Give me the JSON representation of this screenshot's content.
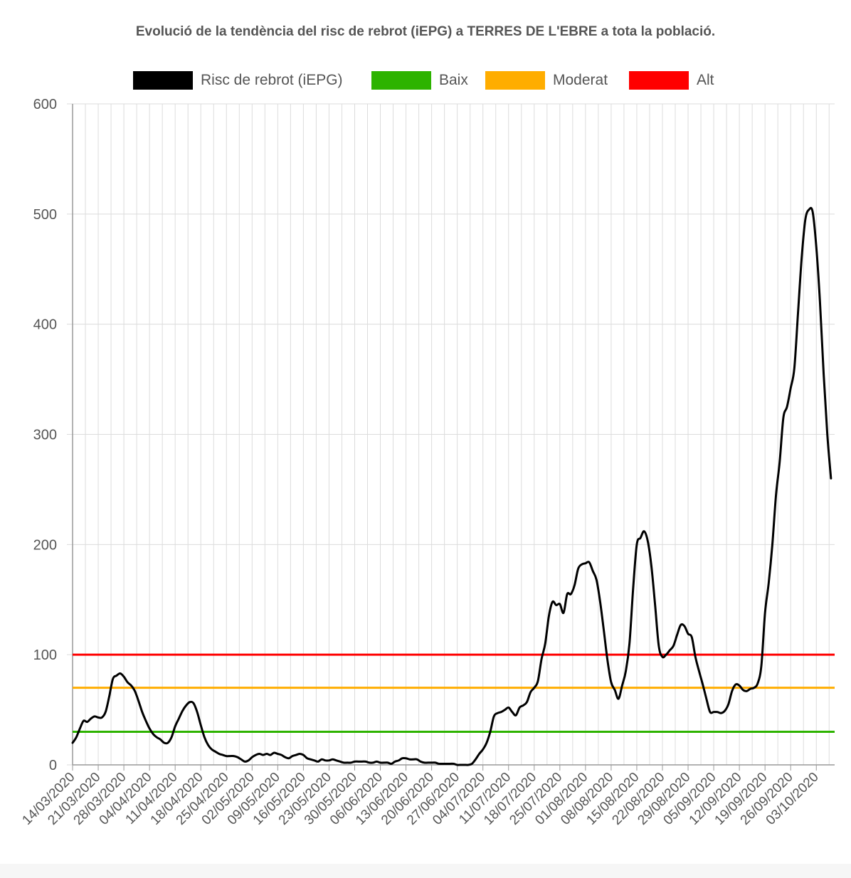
{
  "chart_data": {
    "type": "line",
    "title": "Evolució de la tendència del risc de rebrot (iEPG) a TERRES DE L'EBRE a tota la població.",
    "xlabel": "",
    "ylabel": "",
    "ylim": [
      0,
      600
    ],
    "yticks": [
      "0",
      "100",
      "200",
      "300",
      "400",
      "500",
      "600"
    ],
    "grid": true,
    "legend_position": "top",
    "x_start": "14/03/2020",
    "x_end": "08/10/2020",
    "xticks": [
      "14/03/2020",
      "21/03/2020",
      "28/03/2020",
      "04/04/2020",
      "11/04/2020",
      "18/04/2020",
      "25/04/2020",
      "02/05/2020",
      "09/05/2020",
      "16/05/2020",
      "23/05/2020",
      "30/05/2020",
      "06/06/2020",
      "13/06/2020",
      "20/06/2020",
      "27/06/2020",
      "04/07/2020",
      "11/07/2020",
      "18/07/2020",
      "25/07/2020",
      "01/08/2020",
      "08/08/2020",
      "15/08/2020",
      "22/08/2020",
      "29/08/2020",
      "05/09/2020",
      "12/09/2020",
      "19/09/2020",
      "26/09/2020",
      "03/10/2020"
    ],
    "series": [
      {
        "name": "Risc de rebrot (iEPG)",
        "color": "#000000",
        "points": [
          [
            "14/03/2020",
            20
          ],
          [
            "15/03/2020",
            25
          ],
          [
            "16/03/2020",
            33
          ],
          [
            "17/03/2020",
            40
          ],
          [
            "18/03/2020",
            39
          ],
          [
            "19/03/2020",
            42
          ],
          [
            "20/03/2020",
            44
          ],
          [
            "21/03/2020",
            43
          ],
          [
            "22/03/2020",
            43
          ],
          [
            "23/03/2020",
            48
          ],
          [
            "24/03/2020",
            62
          ],
          [
            "25/03/2020",
            78
          ],
          [
            "26/03/2020",
            81
          ],
          [
            "27/03/2020",
            83
          ],
          [
            "28/03/2020",
            80
          ],
          [
            "29/03/2020",
            75
          ],
          [
            "30/03/2020",
            72
          ],
          [
            "31/03/2020",
            67
          ],
          [
            "01/04/2020",
            58
          ],
          [
            "02/04/2020",
            48
          ],
          [
            "03/04/2020",
            40
          ],
          [
            "04/04/2020",
            33
          ],
          [
            "05/04/2020",
            28
          ],
          [
            "06/04/2020",
            25
          ],
          [
            "07/04/2020",
            23
          ],
          [
            "08/04/2020",
            20
          ],
          [
            "09/04/2020",
            20
          ],
          [
            "10/04/2020",
            25
          ],
          [
            "11/04/2020",
            35
          ],
          [
            "12/04/2020",
            42
          ],
          [
            "13/04/2020",
            49
          ],
          [
            "14/04/2020",
            54
          ],
          [
            "15/04/2020",
            57
          ],
          [
            "16/04/2020",
            56
          ],
          [
            "17/04/2020",
            48
          ],
          [
            "18/04/2020",
            36
          ],
          [
            "19/04/2020",
            25
          ],
          [
            "20/04/2020",
            18
          ],
          [
            "21/04/2020",
            14
          ],
          [
            "22/04/2020",
            12
          ],
          [
            "23/04/2020",
            10
          ],
          [
            "24/04/2020",
            9
          ],
          [
            "25/04/2020",
            8
          ],
          [
            "26/04/2020",
            8
          ],
          [
            "27/04/2020",
            8
          ],
          [
            "28/04/2020",
            7
          ],
          [
            "29/04/2020",
            5
          ],
          [
            "30/04/2020",
            3
          ],
          [
            "01/05/2020",
            4
          ],
          [
            "02/05/2020",
            7
          ],
          [
            "03/05/2020",
            9
          ],
          [
            "04/05/2020",
            10
          ],
          [
            "05/05/2020",
            9
          ],
          [
            "06/05/2020",
            10
          ],
          [
            "07/05/2020",
            9
          ],
          [
            "08/05/2020",
            11
          ],
          [
            "09/05/2020",
            10
          ],
          [
            "10/05/2020",
            9
          ],
          [
            "11/05/2020",
            7
          ],
          [
            "12/05/2020",
            6
          ],
          [
            "13/05/2020",
            8
          ],
          [
            "14/05/2020",
            9
          ],
          [
            "15/05/2020",
            10
          ],
          [
            "16/05/2020",
            9
          ],
          [
            "17/05/2020",
            6
          ],
          [
            "18/05/2020",
            5
          ],
          [
            "19/05/2020",
            4
          ],
          [
            "20/05/2020",
            3
          ],
          [
            "21/05/2020",
            5
          ],
          [
            "22/05/2020",
            4
          ],
          [
            "23/05/2020",
            4
          ],
          [
            "24/05/2020",
            5
          ],
          [
            "25/05/2020",
            4
          ],
          [
            "26/05/2020",
            3
          ],
          [
            "27/05/2020",
            2
          ],
          [
            "28/05/2020",
            2
          ],
          [
            "29/05/2020",
            2
          ],
          [
            "30/05/2020",
            3
          ],
          [
            "31/05/2020",
            3
          ],
          [
            "01/06/2020",
            3
          ],
          [
            "02/06/2020",
            3
          ],
          [
            "03/06/2020",
            2
          ],
          [
            "04/06/2020",
            2
          ],
          [
            "05/06/2020",
            3
          ],
          [
            "06/06/2020",
            2
          ],
          [
            "07/06/2020",
            2
          ],
          [
            "08/06/2020",
            2
          ],
          [
            "09/06/2020",
            1
          ],
          [
            "10/06/2020",
            3
          ],
          [
            "11/06/2020",
            4
          ],
          [
            "12/06/2020",
            6
          ],
          [
            "13/06/2020",
            6
          ],
          [
            "14/06/2020",
            5
          ],
          [
            "15/06/2020",
            5
          ],
          [
            "16/06/2020",
            5
          ],
          [
            "17/06/2020",
            3
          ],
          [
            "18/06/2020",
            2
          ],
          [
            "19/06/2020",
            2
          ],
          [
            "20/06/2020",
            2
          ],
          [
            "21/06/2020",
            2
          ],
          [
            "22/06/2020",
            1
          ],
          [
            "23/06/2020",
            1
          ],
          [
            "24/06/2020",
            1
          ],
          [
            "25/06/2020",
            1
          ],
          [
            "26/06/2020",
            1
          ],
          [
            "27/06/2020",
            0
          ],
          [
            "28/06/2020",
            0
          ],
          [
            "29/06/2020",
            0
          ],
          [
            "30/06/2020",
            0
          ],
          [
            "01/07/2020",
            1
          ],
          [
            "02/07/2020",
            5
          ],
          [
            "03/07/2020",
            10
          ],
          [
            "04/07/2020",
            14
          ],
          [
            "05/07/2020",
            20
          ],
          [
            "06/07/2020",
            30
          ],
          [
            "07/07/2020",
            44
          ],
          [
            "08/07/2020",
            47
          ],
          [
            "09/07/2020",
            48
          ],
          [
            "10/07/2020",
            50
          ],
          [
            "11/07/2020",
            52
          ],
          [
            "12/07/2020",
            48
          ],
          [
            "13/07/2020",
            45
          ],
          [
            "14/07/2020",
            52
          ],
          [
            "15/07/2020",
            54
          ],
          [
            "16/07/2020",
            57
          ],
          [
            "17/07/2020",
            66
          ],
          [
            "18/07/2020",
            70
          ],
          [
            "19/07/2020",
            76
          ],
          [
            "20/07/2020",
            96
          ],
          [
            "21/07/2020",
            110
          ],
          [
            "22/07/2020",
            135
          ],
          [
            "23/07/2020",
            148
          ],
          [
            "24/07/2020",
            145
          ],
          [
            "25/07/2020",
            146
          ],
          [
            "26/07/2020",
            138
          ],
          [
            "27/07/2020",
            155
          ],
          [
            "28/07/2020",
            155
          ],
          [
            "29/07/2020",
            163
          ],
          [
            "30/07/2020",
            178
          ],
          [
            "31/07/2020",
            182
          ],
          [
            "01/08/2020",
            183
          ],
          [
            "02/08/2020",
            184
          ],
          [
            "03/08/2020",
            176
          ],
          [
            "04/08/2020",
            168
          ],
          [
            "05/08/2020",
            148
          ],
          [
            "06/08/2020",
            122
          ],
          [
            "07/08/2020",
            95
          ],
          [
            "08/08/2020",
            75
          ],
          [
            "09/08/2020",
            68
          ],
          [
            "10/08/2020",
            60
          ],
          [
            "11/08/2020",
            72
          ],
          [
            "12/08/2020",
            85
          ],
          [
            "13/08/2020",
            110
          ],
          [
            "14/08/2020",
            160
          ],
          [
            "15/08/2020",
            200
          ],
          [
            "16/08/2020",
            206
          ],
          [
            "17/08/2020",
            212
          ],
          [
            "18/08/2020",
            203
          ],
          [
            "19/08/2020",
            180
          ],
          [
            "20/08/2020",
            145
          ],
          [
            "21/08/2020",
            108
          ],
          [
            "22/08/2020",
            98
          ],
          [
            "23/08/2020",
            100
          ],
          [
            "24/08/2020",
            104
          ],
          [
            "25/08/2020",
            108
          ],
          [
            "26/08/2020",
            118
          ],
          [
            "27/08/2020",
            127
          ],
          [
            "28/08/2020",
            126
          ],
          [
            "29/08/2020",
            119
          ],
          [
            "30/08/2020",
            116
          ],
          [
            "31/08/2020",
            98
          ],
          [
            "01/09/2020",
            85
          ],
          [
            "02/09/2020",
            73
          ],
          [
            "03/09/2020",
            60
          ],
          [
            "04/09/2020",
            48
          ],
          [
            "05/09/2020",
            48
          ],
          [
            "06/09/2020",
            48
          ],
          [
            "07/09/2020",
            47
          ],
          [
            "08/09/2020",
            49
          ],
          [
            "09/09/2020",
            55
          ],
          [
            "10/09/2020",
            67
          ],
          [
            "11/09/2020",
            73
          ],
          [
            "12/09/2020",
            72
          ],
          [
            "13/09/2020",
            68
          ],
          [
            "14/09/2020",
            67
          ],
          [
            "15/09/2020",
            69
          ],
          [
            "16/09/2020",
            70
          ],
          [
            "17/09/2020",
            74
          ],
          [
            "18/09/2020",
            90
          ],
          [
            "19/09/2020",
            138
          ],
          [
            "20/09/2020",
            165
          ],
          [
            "21/09/2020",
            200
          ],
          [
            "22/09/2020",
            245
          ],
          [
            "23/09/2020",
            275
          ],
          [
            "24/09/2020",
            315
          ],
          [
            "25/09/2020",
            325
          ],
          [
            "26/09/2020",
            342
          ],
          [
            "27/09/2020",
            360
          ],
          [
            "28/09/2020",
            410
          ],
          [
            "29/09/2020",
            460
          ],
          [
            "30/09/2020",
            495
          ],
          [
            "01/10/2020",
            504
          ],
          [
            "02/10/2020",
            502
          ],
          [
            "03/10/2020",
            470
          ],
          [
            "04/10/2020",
            420
          ],
          [
            "05/10/2020",
            355
          ],
          [
            "06/10/2020",
            300
          ],
          [
            "07/10/2020",
            260
          ]
        ]
      },
      {
        "name": "Baix",
        "color": "#2db300",
        "value": 30
      },
      {
        "name": "Moderat",
        "color": "#ffad00",
        "value": 70
      },
      {
        "name": "Alt",
        "color": "#ff0000",
        "value": 100
      }
    ]
  }
}
